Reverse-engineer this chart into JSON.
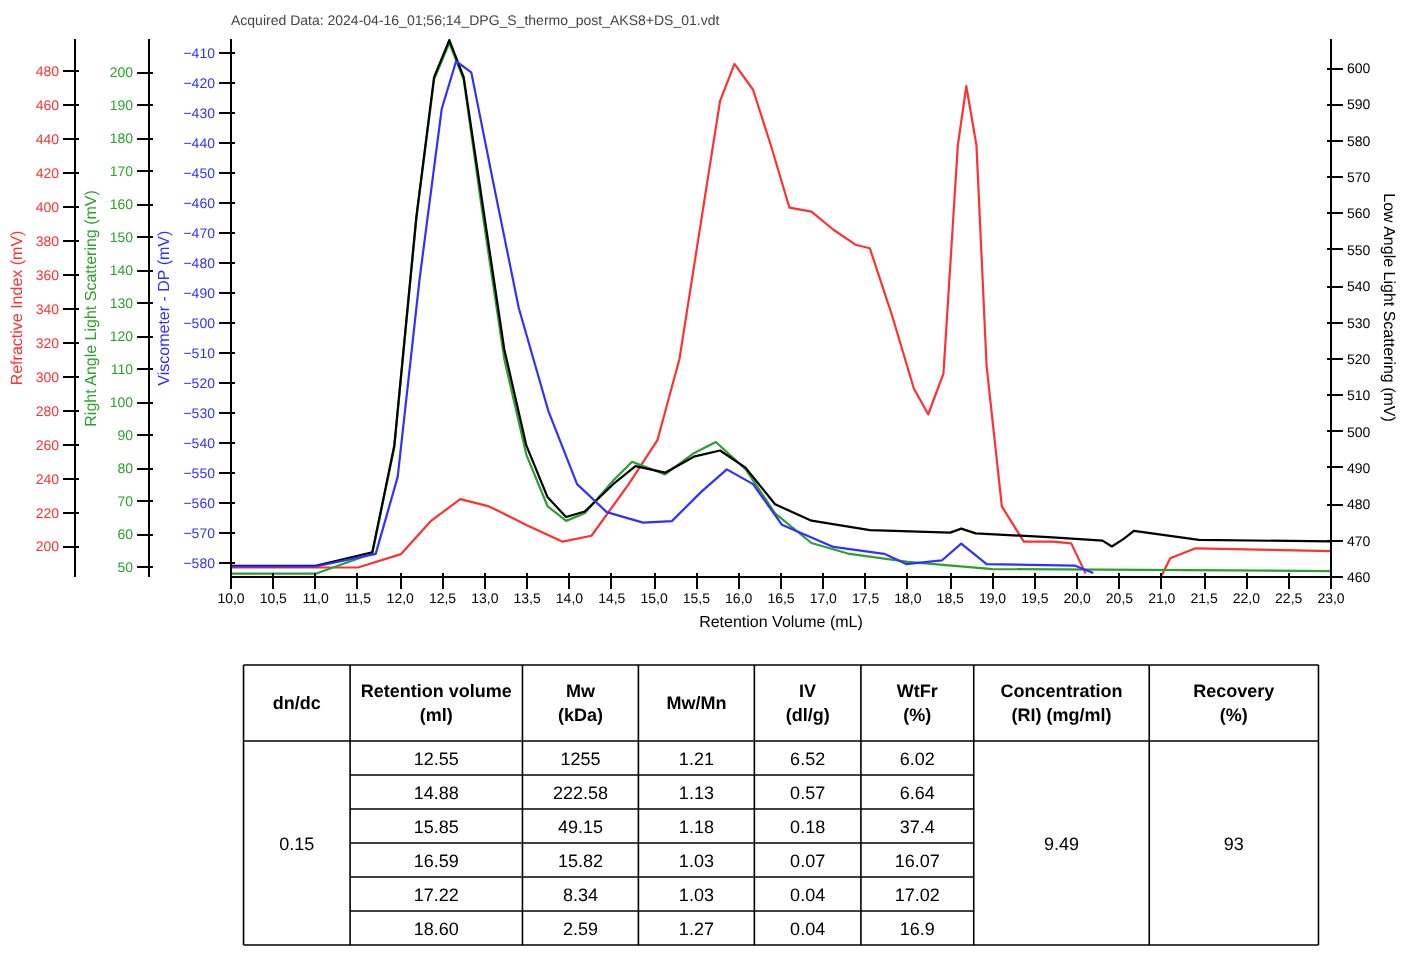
{
  "chart_data": [
    {
      "type": "line",
      "xlabel": "Retention Volume (mL)",
      "ylabel": "Refractive Index (mV)",
      "y2label": "Low Angle Light Scattering (mV)",
      "y3label": "Right Angle Light Scattering (mV)",
      "annotations": [
        "Acquired Data: 2024-04-16_01;56;14_DPG_S_thermo_post_AKS8+DS_01.vdt"
      ],
      "xlim": [
        10.0,
        23.0
      ],
      "xticks": [
        {
          "value": 10.0,
          "label": "10,0"
        },
        {
          "value": 10.5,
          "label": "10,5"
        },
        {
          "value": 11.0,
          "label": "11,0"
        },
        {
          "value": 11.5,
          "label": "11,5"
        },
        {
          "value": 12.0,
          "label": "12,0"
        },
        {
          "value": 12.5,
          "label": "12,5"
        },
        {
          "value": 13.0,
          "label": "13,0"
        },
        {
          "value": 13.5,
          "label": "13,5"
        },
        {
          "value": 14.0,
          "label": "14,0"
        },
        {
          "value": 14.5,
          "label": "14,5"
        },
        {
          "value": 15.0,
          "label": "15,0"
        },
        {
          "value": 15.5,
          "label": "15,5"
        },
        {
          "value": 16.0,
          "label": "16,0"
        },
        {
          "value": 16.5,
          "label": "16,5"
        },
        {
          "value": 17.0,
          "label": "17,0"
        },
        {
          "value": 17.5,
          "label": "17,5"
        },
        {
          "value": 18.0,
          "label": "18,0"
        },
        {
          "value": 18.5,
          "label": "18,5"
        },
        {
          "value": 19.0,
          "label": "19,0"
        },
        {
          "value": 19.5,
          "label": "19,5"
        },
        {
          "value": 20.0,
          "label": "20,0"
        },
        {
          "value": 20.5,
          "label": "20,5"
        },
        {
          "value": 21.0,
          "label": "21,0"
        },
        {
          "value": 21.5,
          "label": "21,5"
        },
        {
          "value": 22.0,
          "label": "22,0"
        },
        {
          "value": 22.5,
          "label": "22,5"
        },
        {
          "value": 23.0,
          "label": "23,0"
        }
      ],
      "ylim": [
        182,
        499
      ],
      "yticks": [
        200,
        220,
        240,
        260,
        280,
        300,
        320,
        340,
        360,
        380,
        400,
        420,
        440,
        460,
        480
      ],
      "y2lim": [
        460,
        608
      ],
      "y2ticks": [
        460,
        470,
        480,
        490,
        500,
        510,
        520,
        530,
        540,
        550,
        560,
        570,
        580,
        590,
        600
      ],
      "y3lim": [
        47,
        210
      ],
      "y3ticks": [
        50,
        60,
        70,
        80,
        90,
        100,
        110,
        120,
        130,
        140,
        150,
        160,
        170,
        180,
        190,
        200
      ],
      "series": [
        {
          "color": "#ff3030",
          "x": [
            10.0,
            11.5,
            12.01,
            12.36,
            12.71,
            13.05,
            13.49,
            13.92,
            14.26,
            14.7,
            15.04,
            15.3,
            15.56,
            15.78,
            15.95,
            16.17,
            16.38,
            16.6,
            16.86,
            17.12,
            17.38,
            17.55,
            17.81,
            18.07,
            18.24,
            18.42,
            18.59,
            18.69,
            18.81,
            18.93,
            19.11,
            19.37,
            19.71,
            19.93,
            20.1,
            20.5,
            21.0,
            21.1,
            21.4,
            23.0
          ],
          "values": [
            187.6,
            187.6,
            195.5,
            214.9,
            227.9,
            223.6,
            212.7,
            202.8,
            206.3,
            236.7,
            262.7,
            310.5,
            393,
            462.5,
            484.3,
            469.1,
            436.4,
            399.6,
            397.3,
            386.6,
            377.8,
            375.7,
            336.5,
            293.1,
            277.9,
            301.9,
            436.4,
            471.2,
            436.4,
            306.2,
            223.6,
            202.8,
            202.8,
            201.8,
            184,
            null,
            183,
            193,
            198.9,
            197.3
          ]
        },
        {
          "color": "#2ca02c",
          "axis": "y3",
          "x": [
            10.0,
            11.0,
            11.67,
            11.93,
            12.19,
            12.4,
            12.58,
            12.75,
            12.97,
            13.23,
            13.49,
            13.74,
            13.96,
            14.18,
            14.52,
            14.74,
            15.13,
            15.47,
            15.73,
            16.08,
            16.43,
            16.86,
            17.29,
            18.0,
            19.0,
            23.0
          ],
          "values": [
            48,
            48,
            54.1,
            86.3,
            155.4,
            197.7,
            208.8,
            197.7,
            157.6,
            113,
            84.1,
            68.5,
            64,
            66.3,
            76.3,
            81.9,
            78.1,
            84.5,
            87.9,
            79.7,
            66.3,
            57.3,
            54.1,
            51.6,
            49.4,
            48.8
          ]
        },
        {
          "color": "#000000",
          "axis": "y2",
          "x": [
            10.0,
            11.0,
            11.67,
            11.93,
            12.19,
            12.4,
            12.58,
            12.75,
            12.97,
            13.23,
            13.49,
            13.74,
            13.96,
            14.18,
            14.52,
            14.78,
            15.13,
            15.47,
            15.78,
            16.08,
            16.43,
            16.86,
            17.55,
            18.5,
            18.63,
            18.8,
            19.71,
            20.3,
            20.41,
            20.55,
            20.67,
            21.44,
            23.0
          ],
          "values": [
            463.1,
            463.1,
            466.8,
            496.2,
            559,
            597.5,
            607.7,
            597.5,
            563.1,
            522.6,
            496.2,
            482,
            476.5,
            478,
            485.6,
            490.5,
            488.7,
            493.1,
            494.8,
            490.1,
            480,
            475.5,
            472.9,
            472.2,
            473.3,
            472.0,
            470.9,
            470.0,
            468.4,
            470.5,
            472.7,
            470.2,
            469.8
          ]
        }
      ]
    },
    {
      "type": "line",
      "ylabel": "Viscometer - DP (mV)",
      "tick_labels": "y",
      "xlim": [
        10.0,
        23.0
      ],
      "ylim": [
        -584.5,
        -405.5
      ],
      "yticks": [
        -580,
        -570,
        -560,
        -550,
        -540,
        -530,
        -520,
        -510,
        -500,
        -490,
        -480,
        -470,
        -460,
        -450,
        -440,
        -430,
        -420,
        -410
      ],
      "series": [
        {
          "color": "#3030ff",
          "x": [
            10.0,
            11.0,
            11.71,
            11.97,
            12.23,
            12.49,
            12.66,
            12.84,
            13.1,
            13.4,
            13.75,
            14.09,
            14.44,
            14.87,
            15.21,
            15.56,
            15.86,
            16.17,
            16.51,
            17.12,
            17.72,
            17.98,
            18.4,
            18.63,
            18.93,
            19.97,
            20.19
          ],
          "values": [
            -581,
            -581,
            -576.8,
            -551.2,
            -485.1,
            -428.8,
            -412.9,
            -416.6,
            -453.3,
            -494.9,
            -529.2,
            -553.6,
            -562.9,
            -566.4,
            -565.9,
            -556.1,
            -548.7,
            -553.6,
            -567.1,
            -574.5,
            -576.8,
            -580.2,
            -579,
            -573.4,
            -580.2,
            -580.7,
            -583.2
          ]
        }
      ]
    },
    {
      "type": "other",
      "annotations": [
        "dn/dc",
        "Retention volume\n(ml)",
        "Mw\n(kDa)",
        "Mw/Mn",
        "IV\n(dl/g)",
        "WtFr\n(%)",
        "Concentration\n(RI) (mg/ml)",
        "Recovery\n(%)",
        "0.15",
        "12.55",
        "1255",
        "1.21",
        "6.52",
        "6.02",
        "14.88",
        "222.58",
        "1.13",
        "0.57",
        "6.64",
        "15.85",
        "49.15",
        "1.18",
        "0.18",
        "37.4",
        "16.59",
        "15.82",
        "1.03",
        "0.07",
        "16.07",
        "17.22",
        "8.34",
        "1.03",
        "0.04",
        "17.02",
        "18.60",
        "2.59",
        "1.27",
        "0.04",
        "16.9",
        "9.49",
        "93"
      ]
    }
  ]
}
